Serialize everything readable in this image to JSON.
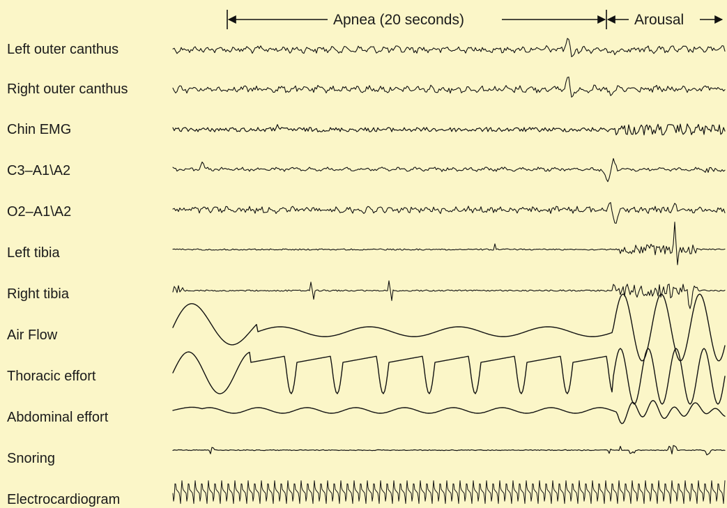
{
  "events": [
    {
      "id": "apnea",
      "label": "Apnea (20 seconds)"
    },
    {
      "id": "arousal",
      "label": "Arousal"
    }
  ],
  "channels": [
    {
      "id": "left-outer-canthus",
      "label": "Left outer canthus"
    },
    {
      "id": "right-outer-canthus",
      "label": "Right outer canthus"
    },
    {
      "id": "chin-emg",
      "label": "Chin EMG"
    },
    {
      "id": "c3-a1a2",
      "label": "C3–A1\\A2"
    },
    {
      "id": "o2-a1a2",
      "label": "O2–A1\\A2"
    },
    {
      "id": "left-tibia",
      "label": "Left tibia"
    },
    {
      "id": "right-tibia",
      "label": "Right tibia"
    },
    {
      "id": "air-flow",
      "label": "Air Flow"
    },
    {
      "id": "thoracic-effort",
      "label": "Thoracic effort"
    },
    {
      "id": "abdominal-effort",
      "label": "Abdominal effort"
    },
    {
      "id": "snoring",
      "label": "Snoring"
    },
    {
      "id": "electrocardiogram",
      "label": "Electrocardiogram"
    }
  ],
  "colors": {
    "background": "#fbf6c8",
    "ink": "#111111"
  }
}
